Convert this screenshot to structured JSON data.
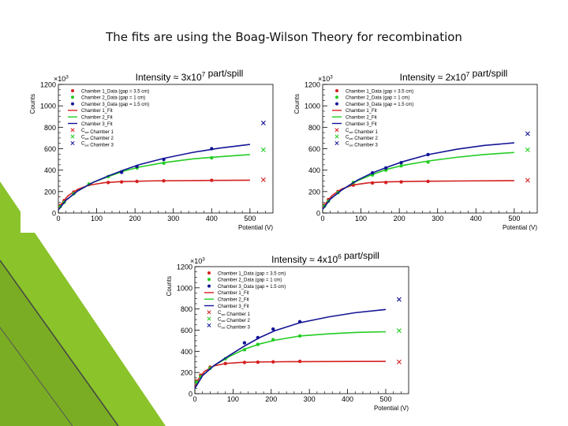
{
  "slide": {
    "title": "The fits are using the Boag-Wilson Theory for recombination"
  },
  "colors": {
    "red": "#d42020",
    "green": "#22cc22",
    "blue": "#141496",
    "accent": "#8ac32a"
  },
  "chart_data": [
    {
      "type": "scatter",
      "title": "Intensity ≈ 3x10^7 part/spill",
      "xlabel": "Potential (V)",
      "ylabel": "Counts",
      "xlim": [
        0,
        560
      ],
      "ylim": [
        0,
        1200
      ],
      "y_exponent": "×10^3",
      "x_ticks": [
        "0",
        "100",
        "200",
        "300",
        "400",
        "500"
      ],
      "y_ticks": [
        "0",
        "200",
        "400",
        "600",
        "800",
        "1000",
        "1200"
      ],
      "legend": [
        {
          "label": "Chamber 1_Data (gap = 3.5 cm)",
          "color": "red",
          "marker": "dot"
        },
        {
          "label": "Chamber 2_Data (gap = 1 cm)",
          "color": "green",
          "marker": "dot"
        },
        {
          "label": "Chamber 3_Data (gap = 1.5 cm)",
          "color": "blue",
          "marker": "dot"
        },
        {
          "label": "Chamber 1_Fit",
          "color": "red",
          "marker": "line"
        },
        {
          "label": "Chamber 2_Fit",
          "color": "green",
          "marker": "line"
        },
        {
          "label": "Chamber 3_Fit",
          "color": "blue",
          "marker": "line"
        },
        {
          "label": "C_sat Chamber 1",
          "color": "red",
          "marker": "x"
        },
        {
          "label": "C_sat Chamber 2",
          "color": "green",
          "marker": "x"
        },
        {
          "label": "C_sat Chamber 3",
          "color": "blue",
          "marker": "x"
        }
      ],
      "series": [
        {
          "color": "red",
          "points": [
            [
              5,
              70
            ],
            [
              15,
              115
            ],
            [
              40,
              195
            ],
            [
              80,
              265
            ],
            [
              130,
              285
            ],
            [
              165,
              290
            ],
            [
              205,
              295
            ],
            [
              275,
              300
            ],
            [
              400,
              305
            ]
          ],
          "fit": [
            [
              0,
              40
            ],
            [
              10,
              95
            ],
            [
              25,
              160
            ],
            [
              50,
              220
            ],
            [
              80,
              260
            ],
            [
              120,
              283
            ],
            [
              160,
              292
            ],
            [
              250,
              300
            ],
            [
              400,
              304
            ],
            [
              500,
              306
            ]
          ],
          "sat": [
            535,
            310
          ]
        },
        {
          "color": "green",
          "points": [
            [
              5,
              60
            ],
            [
              15,
              100
            ],
            [
              40,
              180
            ],
            [
              80,
              270
            ],
            [
              130,
              340
            ],
            [
              165,
              385
            ],
            [
              205,
              420
            ],
            [
              275,
              465
            ],
            [
              400,
              515
            ]
          ],
          "fit": [
            [
              0,
              30
            ],
            [
              20,
              120
            ],
            [
              50,
              205
            ],
            [
              90,
              285
            ],
            [
              130,
              340
            ],
            [
              170,
              390
            ],
            [
              210,
              428
            ],
            [
              275,
              470
            ],
            [
              350,
              505
            ],
            [
              420,
              525
            ],
            [
              500,
              545
            ]
          ],
          "sat": [
            535,
            590
          ]
        },
        {
          "color": "blue",
          "points": [
            [
              165,
              380
            ],
            [
              205,
              435
            ],
            [
              275,
              500
            ],
            [
              400,
              600
            ]
          ],
          "fit": [
            [
              0,
              30
            ],
            [
              20,
              120
            ],
            [
              50,
              205
            ],
            [
              90,
              285
            ],
            [
              130,
              345
            ],
            [
              170,
              400
            ],
            [
              210,
              450
            ],
            [
              275,
              510
            ],
            [
              350,
              565
            ],
            [
              420,
              605
            ],
            [
              500,
              640
            ]
          ],
          "sat": [
            535,
            840
          ]
        }
      ]
    },
    {
      "type": "scatter",
      "title": "Intensity ≈ 2x10^7 part/spill",
      "xlabel": "Potential (V)",
      "ylabel": "Counts",
      "xlim": [
        0,
        560
      ],
      "ylim": [
        0,
        1200
      ],
      "y_exponent": "×10^3",
      "x_ticks": [
        "0",
        "100",
        "200",
        "300",
        "400",
        "500"
      ],
      "y_ticks": [
        "0",
        "200",
        "400",
        "600",
        "800",
        "1000",
        "1200"
      ],
      "legend": [
        {
          "label": "Chamber 1_Data (gap = 3.5 cm)",
          "color": "red",
          "marker": "dot"
        },
        {
          "label": "Chamber 2_Data (gap = 1 cm)",
          "color": "green",
          "marker": "dot"
        },
        {
          "label": "Chamber 3_Data (gap = 1.5 cm)",
          "color": "blue",
          "marker": "dot"
        },
        {
          "label": "Chamber 1_Fit",
          "color": "red",
          "marker": "line"
        },
        {
          "label": "Chamber 2_Fit",
          "color": "green",
          "marker": "line"
        },
        {
          "label": "Chamber 3_Fit",
          "color": "blue",
          "marker": "line"
        },
        {
          "label": "C_sat Chamber 1",
          "color": "red",
          "marker": "x"
        },
        {
          "label": "C_sat Chamber 2",
          "color": "green",
          "marker": "x"
        },
        {
          "label": "C_sat Chamber 3",
          "color": "blue",
          "marker": "x"
        }
      ],
      "series": [
        {
          "color": "red",
          "points": [
            [
              5,
              75
            ],
            [
              15,
              125
            ],
            [
              40,
              200
            ],
            [
              80,
              260
            ],
            [
              130,
              280
            ],
            [
              165,
              285
            ],
            [
              205,
              290
            ],
            [
              275,
              295
            ]
          ],
          "fit": [
            [
              0,
              45
            ],
            [
              10,
              100
            ],
            [
              25,
              165
            ],
            [
              50,
              225
            ],
            [
              80,
              262
            ],
            [
              120,
              282
            ],
            [
              165,
              290
            ],
            [
              250,
              296
            ],
            [
              400,
              300
            ],
            [
              500,
              302
            ]
          ],
          "sat": [
            535,
            305
          ]
        },
        {
          "color": "green",
          "points": [
            [
              5,
              65
            ],
            [
              15,
              110
            ],
            [
              40,
              190
            ],
            [
              80,
              285
            ],
            [
              130,
              355
            ],
            [
              165,
              400
            ],
            [
              205,
              440
            ],
            [
              275,
              475
            ]
          ],
          "fit": [
            [
              0,
              35
            ],
            [
              20,
              130
            ],
            [
              50,
              215
            ],
            [
              90,
              300
            ],
            [
              130,
              360
            ],
            [
              170,
              410
            ],
            [
              210,
              445
            ],
            [
              275,
              485
            ],
            [
              350,
              520
            ],
            [
              420,
              545
            ],
            [
              500,
              565
            ]
          ],
          "sat": [
            535,
            590
          ]
        },
        {
          "color": "blue",
          "points": [
            [
              130,
              375
            ],
            [
              165,
              420
            ],
            [
              205,
              470
            ],
            [
              275,
              545
            ]
          ],
          "fit": [
            [
              0,
              35
            ],
            [
              20,
              130
            ],
            [
              50,
              215
            ],
            [
              90,
              305
            ],
            [
              130,
              375
            ],
            [
              170,
              430
            ],
            [
              210,
              480
            ],
            [
              275,
              545
            ],
            [
              350,
              595
            ],
            [
              420,
              630
            ],
            [
              500,
              655
            ]
          ],
          "sat": [
            535,
            740
          ]
        }
      ]
    },
    {
      "type": "scatter",
      "title": "Intensity ≈ 4x10^6 part/spill",
      "xlabel": "Potential (V)",
      "ylabel": "Counts",
      "xlim": [
        0,
        560
      ],
      "ylim": [
        0,
        1200
      ],
      "y_exponent": "×10^3",
      "x_ticks": [
        "0",
        "100",
        "200",
        "300",
        "400",
        "500"
      ],
      "y_ticks": [
        "0",
        "200",
        "400",
        "600",
        "800",
        "1000",
        "1200"
      ],
      "legend": [
        {
          "label": "Chamber 1_Data (gap = 3.5 cm)",
          "color": "red",
          "marker": "dot"
        },
        {
          "label": "Chamber 2_Data (gap = 1 cm)",
          "color": "green",
          "marker": "dot"
        },
        {
          "label": "Chamber 3_Data (gap = 1.5 cm)",
          "color": "blue",
          "marker": "dot"
        },
        {
          "label": "Chamber 1_Fit",
          "color": "red",
          "marker": "line"
        },
        {
          "label": "Chamber 2_Fit",
          "color": "green",
          "marker": "line"
        },
        {
          "label": "Chamber 3_Fit",
          "color": "blue",
          "marker": "line"
        },
        {
          "label": "C_sat Chamber 1",
          "color": "red",
          "marker": "x"
        },
        {
          "label": "C_sat Chamber 2",
          "color": "green",
          "marker": "x"
        },
        {
          "label": "C_sat Chamber 3",
          "color": "blue",
          "marker": "x"
        }
      ],
      "series": [
        {
          "color": "red",
          "points": [
            [
              5,
              120
            ],
            [
              15,
              175
            ],
            [
              40,
              250
            ],
            [
              80,
              285
            ],
            [
              130,
              295
            ],
            [
              165,
              298
            ],
            [
              205,
              300
            ],
            [
              275,
              305
            ]
          ],
          "fit": [
            [
              0,
              60
            ],
            [
              10,
              140
            ],
            [
              25,
              210
            ],
            [
              50,
              262
            ],
            [
              80,
              285
            ],
            [
              120,
              295
            ],
            [
              165,
              299
            ],
            [
              250,
              302
            ],
            [
              400,
              304
            ],
            [
              500,
              305
            ]
          ],
          "sat": [
            535,
            300
          ]
        },
        {
          "color": "green",
          "points": [
            [
              5,
              110
            ],
            [
              15,
              160
            ],
            [
              40,
              240
            ],
            [
              80,
              330
            ],
            [
              130,
              415
            ],
            [
              165,
              465
            ],
            [
              205,
              510
            ],
            [
              275,
              545
            ]
          ],
          "fit": [
            [
              0,
              50
            ],
            [
              20,
              170
            ],
            [
              50,
              265
            ],
            [
              90,
              350
            ],
            [
              130,
              420
            ],
            [
              170,
              470
            ],
            [
              210,
              505
            ],
            [
              275,
              545
            ],
            [
              350,
              565
            ],
            [
              420,
              578
            ],
            [
              500,
              585
            ]
          ],
          "sat": [
            535,
            595
          ]
        },
        {
          "color": "blue",
          "points": [
            [
              130,
              480
            ],
            [
              165,
              530
            ],
            [
              205,
              610
            ],
            [
              275,
              680
            ]
          ],
          "fit": [
            [
              0,
              50
            ],
            [
              20,
              170
            ],
            [
              50,
              265
            ],
            [
              90,
              360
            ],
            [
              130,
              450
            ],
            [
              170,
              530
            ],
            [
              210,
              595
            ],
            [
              275,
              670
            ],
            [
              350,
              725
            ],
            [
              420,
              765
            ],
            [
              500,
              795
            ]
          ],
          "sat": [
            535,
            890
          ]
        }
      ]
    }
  ]
}
